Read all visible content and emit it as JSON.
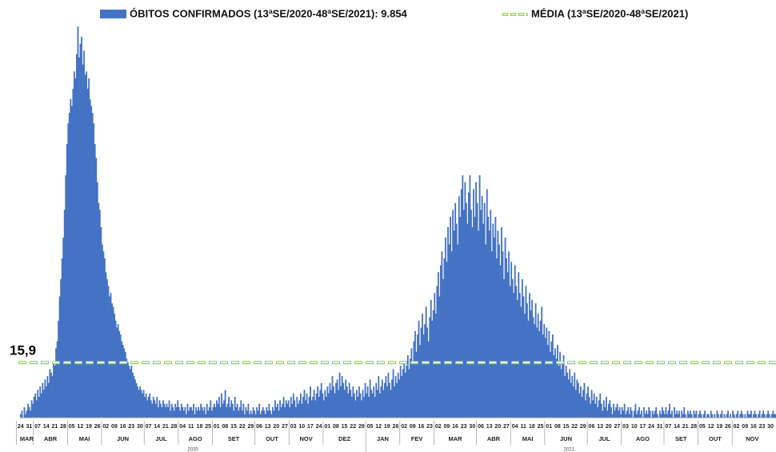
{
  "chart_data": {
    "type": "bar",
    "series": [
      {
        "name": "ÓBITOS CONFIRMADOS (13ªSE/2020-48ªSE/2021): 9.854",
        "color": "#4472c4",
        "values": [
          1,
          2,
          0,
          3,
          1,
          2,
          4,
          3,
          2,
          5,
          4,
          6,
          7,
          5,
          8,
          6,
          9,
          7,
          10,
          8,
          11,
          9,
          12,
          10,
          14,
          13,
          12,
          16,
          15,
          20,
          22,
          28,
          35,
          40,
          46,
          52,
          60,
          70,
          79,
          85,
          88,
          92,
          90,
          95,
          100,
          98,
          105,
          113,
          104,
          108,
          110,
          102,
          106,
          99,
          100,
          95,
          98,
          92,
          90,
          88,
          85,
          79,
          75,
          68,
          62,
          60,
          55,
          50,
          48,
          46,
          42,
          40,
          38,
          35,
          36,
          33,
          32,
          30,
          28,
          26,
          27,
          25,
          24,
          22,
          21,
          20,
          19,
          17,
          16,
          15,
          14,
          15,
          13,
          12,
          11,
          10,
          9,
          8,
          9,
          8,
          7,
          8,
          6,
          7,
          5,
          6,
          7,
          5,
          4,
          6,
          5,
          4,
          6,
          3,
          5,
          4,
          3,
          5,
          4,
          3,
          4,
          3,
          5,
          2,
          4,
          3,
          2,
          4,
          3,
          5,
          3,
          2,
          4,
          3,
          2,
          3,
          1,
          4,
          2,
          3,
          3,
          2,
          4,
          1,
          3,
          2,
          3,
          2,
          4,
          3,
          2,
          3,
          1,
          4,
          2,
          3,
          5,
          2,
          3,
          4,
          3,
          5,
          4,
          6,
          3,
          7,
          4,
          5,
          8,
          3,
          4,
          6,
          3,
          5,
          4,
          2,
          6,
          3,
          4,
          2,
          3,
          5,
          2,
          4,
          1,
          3,
          2,
          4,
          1,
          2,
          1,
          3,
          2,
          1,
          3,
          2,
          4,
          1,
          2,
          3,
          2,
          1,
          3,
          2,
          4,
          2,
          1,
          3,
          2,
          5,
          3,
          4,
          2,
          5,
          3,
          4,
          6,
          3,
          5,
          4,
          5,
          3,
          6,
          4,
          7,
          5,
          3,
          6,
          4,
          5,
          7,
          4,
          6,
          8,
          5,
          7,
          4,
          6,
          9,
          5,
          6,
          8,
          5,
          7,
          9,
          6,
          8,
          10,
          7,
          5,
          8,
          6,
          9,
          7,
          10,
          8,
          12,
          9,
          7,
          10,
          11,
          8,
          13,
          9,
          12,
          10,
          8,
          11,
          9,
          7,
          10,
          8,
          6,
          9,
          7,
          5,
          8,
          6,
          9,
          7,
          5,
          8,
          6,
          10,
          7,
          9,
          6,
          11,
          8,
          7,
          9,
          6,
          10,
          8,
          12,
          7,
          9,
          11,
          8,
          10,
          12,
          9,
          13,
          10,
          8,
          11,
          14,
          9,
          12,
          10,
          13,
          11,
          15,
          12,
          14,
          16,
          13,
          15,
          18,
          14,
          17,
          20,
          16,
          22,
          25,
          19,
          24,
          28,
          21,
          26,
          30,
          24,
          27,
          32,
          26,
          22,
          29,
          34,
          28,
          31,
          36,
          30,
          38,
          42,
          35,
          44,
          48,
          40,
          46,
          52,
          45,
          55,
          50,
          58,
          48,
          60,
          54,
          62,
          56,
          50,
          64,
          58,
          66,
          70,
          60,
          68,
          62,
          56,
          65,
          70,
          60,
          55,
          66,
          58,
          68,
          62,
          54,
          70,
          60,
          64,
          56,
          62,
          50,
          66,
          58,
          54,
          60,
          48,
          56,
          52,
          58,
          46,
          54,
          50,
          44,
          55,
          48,
          40,
          52,
          46,
          42,
          48,
          38,
          45,
          40,
          36,
          44,
          38,
          34,
          42,
          36,
          32,
          40,
          35,
          30,
          38,
          33,
          28,
          36,
          31,
          34,
          29,
          27,
          33,
          26,
          30,
          25,
          28,
          32,
          24,
          27,
          23,
          26,
          21,
          25,
          19,
          22,
          24,
          18,
          20,
          17,
          21,
          15,
          19,
          14,
          16,
          18,
          12,
          15,
          13,
          11,
          14,
          10,
          12,
          9,
          13,
          8,
          11,
          10,
          7,
          9,
          6,
          8,
          10,
          5,
          7,
          9,
          6,
          4,
          8,
          5,
          7,
          4,
          6,
          3,
          5,
          7,
          4,
          2,
          5,
          3,
          6,
          2,
          4,
          5,
          3,
          1,
          4,
          2,
          3,
          4,
          2,
          3,
          1,
          3,
          2,
          4,
          1,
          2,
          3,
          1,
          3,
          2,
          0,
          2,
          4,
          1,
          2,
          3,
          1,
          2,
          0,
          3,
          1,
          2,
          1,
          3,
          2,
          0,
          2,
          1,
          2,
          3,
          1,
          0,
          2,
          1,
          3,
          2,
          1,
          3,
          1,
          2,
          4,
          1,
          2,
          0,
          3,
          1,
          2,
          1,
          2,
          0,
          2,
          1,
          3,
          1,
          0,
          2,
          1,
          2,
          1,
          0,
          2,
          1,
          2,
          0,
          1,
          2,
          1,
          0,
          1,
          2,
          0,
          1,
          1,
          0,
          2,
          1,
          0,
          1,
          0,
          2,
          1,
          0,
          1,
          2,
          0,
          1,
          0,
          1,
          2,
          0,
          1,
          0,
          2,
          1,
          0,
          1,
          2,
          0,
          1,
          2,
          1,
          0,
          1,
          0,
          2,
          1,
          1,
          2,
          0,
          1,
          2,
          1,
          0,
          1,
          2,
          0,
          1,
          2,
          1,
          0,
          1,
          2,
          1,
          0,
          1,
          2,
          1,
          1
        ]
      }
    ],
    "categories": [
      "24",
      null,
      null,
      null,
      null,
      null,
      null,
      "31",
      null,
      null,
      null,
      null,
      null,
      null,
      "07",
      null,
      null,
      null,
      null,
      null,
      null,
      "14",
      null,
      null,
      null,
      null,
      null,
      null,
      "21",
      null,
      null,
      null,
      null,
      null,
      null,
      "28",
      null,
      null,
      null,
      null,
      null,
      null,
      "05",
      null,
      null,
      null,
      null,
      null,
      null,
      "12",
      null,
      null,
      null,
      null,
      null,
      null,
      "19",
      null,
      null,
      null,
      null,
      null,
      null,
      "26",
      null,
      null,
      null,
      null,
      null,
      null,
      "02",
      null,
      null,
      null,
      null,
      null,
      null,
      "09",
      null,
      null,
      null,
      null,
      null,
      null,
      "16",
      null,
      null,
      null,
      null,
      null,
      null,
      "23",
      null,
      null,
      null,
      null,
      null,
      null,
      "30",
      null,
      null,
      null,
      null,
      null,
      null,
      "07",
      null,
      null,
      null,
      null,
      null,
      null,
      "14",
      null,
      null,
      null,
      null,
      null,
      null,
      "21",
      null,
      null,
      null,
      null,
      null,
      null,
      "28",
      null,
      null,
      null,
      null,
      null,
      null,
      "04",
      null,
      null,
      null,
      null,
      null,
      null,
      "11",
      null,
      null,
      null,
      null,
      null,
      null,
      "18",
      null,
      null,
      null,
      null,
      null,
      null,
      "25",
      null,
      null,
      null,
      null,
      null,
      null,
      "01",
      null,
      null,
      null,
      null,
      null,
      null,
      "08",
      null,
      null,
      null,
      null,
      null,
      null,
      "15",
      null,
      null,
      null,
      null,
      null,
      null,
      "22",
      null,
      null,
      null,
      null,
      null,
      null,
      "29",
      null,
      null,
      null,
      null,
      null,
      null,
      "06",
      null,
      null,
      null,
      null,
      null,
      null,
      "13",
      null,
      null,
      null,
      null,
      null,
      null,
      "20",
      null,
      null,
      null,
      null,
      null,
      null,
      "27",
      null,
      null,
      null,
      null,
      null,
      null,
      "03",
      null,
      null,
      null,
      null,
      null,
      null,
      "10",
      null,
      null,
      null,
      null,
      null,
      null,
      "17",
      null,
      null,
      null,
      null,
      null,
      null,
      "24",
      null,
      null,
      null,
      null,
      null,
      null,
      "01",
      null,
      null,
      null,
      null,
      null,
      null,
      "08",
      null,
      null,
      null,
      null,
      null,
      null,
      "15",
      null,
      null,
      null,
      null,
      null,
      null,
      "22",
      null,
      null,
      null,
      null,
      null,
      null,
      "29",
      null,
      null,
      null,
      null,
      null,
      null,
      "05",
      null,
      null,
      null,
      null,
      null,
      null,
      "12",
      null,
      null,
      null,
      null,
      null,
      null,
      "19",
      null,
      null,
      null,
      null,
      null,
      null,
      "26",
      null,
      null,
      null,
      null,
      null,
      null,
      "02",
      null,
      null,
      null,
      null,
      null,
      null,
      "09",
      null,
      null,
      null,
      null,
      null,
      null,
      "16",
      null,
      null,
      null,
      null,
      null,
      null,
      "23",
      null,
      null,
      null,
      null,
      null,
      null,
      "02",
      null,
      null,
      null,
      null,
      null,
      null,
      "09",
      null,
      null,
      null,
      null,
      null,
      null,
      "16",
      null,
      null,
      null,
      null,
      null,
      null,
      "23",
      null,
      null,
      null,
      null,
      null,
      null,
      "30",
      null,
      null,
      null,
      null,
      null,
      null,
      "06",
      null,
      null,
      null,
      null,
      null,
      null,
      "13",
      null,
      null,
      null,
      null,
      null,
      null,
      "20",
      null,
      null,
      null,
      null,
      null,
      null,
      "27",
      null,
      null,
      null,
      null,
      null,
      null,
      "04",
      null,
      null,
      null,
      null,
      null,
      null,
      "11",
      null,
      null,
      null,
      null,
      null,
      null,
      "18",
      null,
      null,
      null,
      null,
      null,
      null,
      "25",
      null,
      null,
      null,
      null,
      null,
      null,
      "01",
      null,
      null,
      null,
      null,
      null,
      null,
      "08",
      null,
      null,
      null,
      null,
      null,
      null,
      "15",
      null,
      null,
      null,
      null,
      null,
      null,
      "22",
      null,
      null,
      null,
      null,
      null,
      null,
      "29",
      null,
      null,
      null,
      null,
      null,
      null,
      "06",
      null,
      null,
      null,
      null,
      null,
      null,
      "13",
      null,
      null,
      null,
      null,
      null,
      null,
      "20",
      null,
      null,
      null,
      null,
      null,
      null,
      "27",
      null,
      null,
      null,
      null,
      null,
      null,
      "03",
      null,
      null,
      null,
      null,
      null,
      null,
      "10",
      null,
      null,
      null,
      null,
      null,
      null,
      "17",
      null,
      null,
      null,
      null,
      null,
      null,
      "24",
      null,
      null,
      null,
      null,
      null,
      null,
      "31",
      null,
      null,
      null,
      null,
      null,
      null,
      "07",
      null,
      null,
      null,
      null,
      null,
      null,
      "14",
      null,
      null,
      null,
      null,
      null,
      null,
      "21",
      null,
      null,
      null,
      null,
      null,
      null,
      "28",
      null,
      null,
      null,
      null,
      null,
      null,
      "05",
      null,
      null,
      null,
      null,
      null,
      null,
      "12",
      null,
      null,
      null,
      null,
      null,
      null,
      "19",
      null,
      null,
      null,
      null,
      null,
      null,
      "26",
      null,
      null,
      null,
      null,
      null,
      null,
      "02",
      null,
      null,
      null,
      null,
      null,
      null,
      "09",
      null,
      null,
      null,
      null,
      null,
      null,
      "16",
      null,
      null,
      null,
      null,
      null,
      null,
      "23",
      null,
      null,
      null,
      null,
      null,
      null,
      "30",
      null,
      null,
      null,
      null
    ],
    "years": [
      {
        "label": "2020",
        "months": [
          "MAR",
          "ABR",
          "MAI",
          "JUN",
          "JUL",
          "AGO",
          "SET",
          "OUT",
          "NOV",
          "DEZ"
        ]
      },
      {
        "label": "2021",
        "months": [
          "JAN",
          "FEV",
          "MAR",
          "ABR",
          "MAI",
          "JUN",
          "JUL",
          "AGO",
          "SET",
          "OUT",
          "NOV"
        ]
      }
    ],
    "mean": {
      "name": "MÉDIA (13ªSE/2020-48ªSE/2021)",
      "value": 15.9,
      "label": "15,9",
      "color": "#92d050"
    },
    "ylim": [
      0,
      116
    ]
  }
}
